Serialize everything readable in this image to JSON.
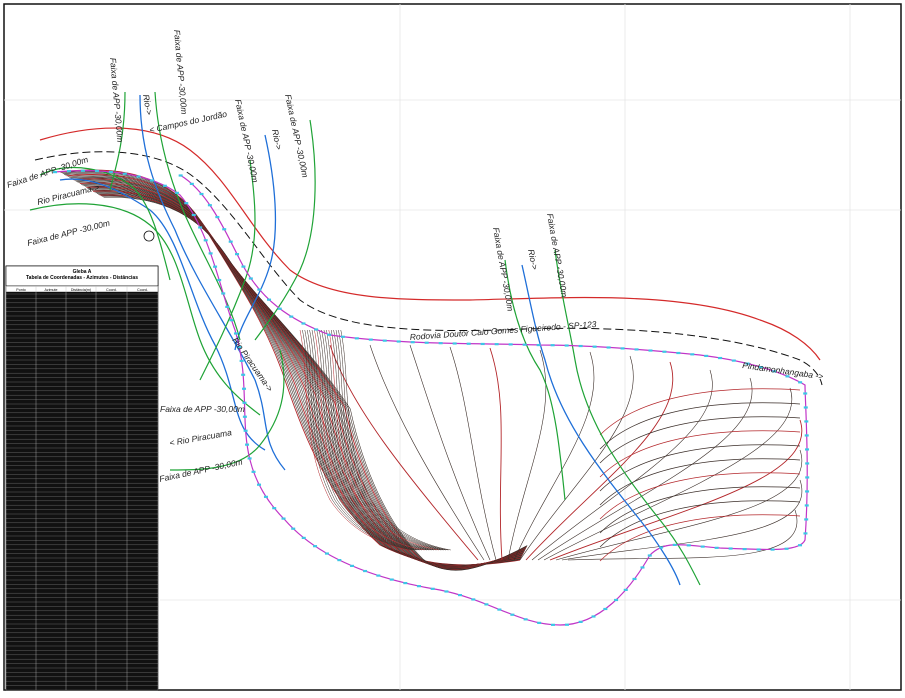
{
  "labels": {
    "campos": "< Campos do Jordão",
    "rodovia": "Rodovia Doutor Caio Gomes Figueiredo - SP-123",
    "pindamonhangaba": "Pindamonhangaba ->",
    "rio_piracuama_upper": "Rio Piracuama->",
    "rio_piracuama_mid": "Rio Piracuama->",
    "rio_piracuama_lower": "< Rio Piracuama",
    "rio_1": "Rio->",
    "rio_2": "Rio->",
    "rio_3": "Rio->",
    "faixa_1": "Faixa de APP -30,00m",
    "faixa_2": "Faixa de APP -30,00m",
    "faixa_3": "Faixa de APP -30,00m",
    "faixa_4": "Faixa de APP -30,00m",
    "faixa_5": "Faixa de APP -30,00m",
    "faixa_6": "Faixa de APP -30,00m",
    "faixa_left_top": "Faixa de APP -30,00m",
    "faixa_left_bottom": "Faixa de APP -30,00m",
    "faixa_mid_1": "Faixa de APP -30,00m",
    "faixa_mid_2": "Faixa de APP -30,00m"
  },
  "table": {
    "title": "Gleba A",
    "subtitle": "Tabela de Coordenadas - Azimutes - Distâncias",
    "columns": [
      "Ponto",
      "Azimute",
      "Distância(m)",
      "Coord.",
      "Coord."
    ]
  },
  "colors": {
    "road": "#d42a2a",
    "river": "#1f6fd8",
    "app_strip": "#1fa336",
    "contour_dark": "#3a2d28",
    "contour_red": "#b3262a",
    "boundary": "#c035c8",
    "markers": "#3cc6e6"
  }
}
